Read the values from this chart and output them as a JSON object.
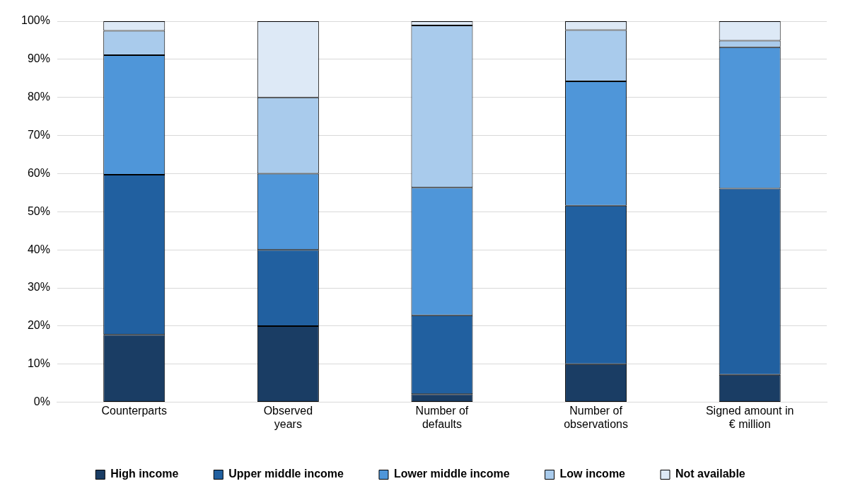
{
  "chart_data": {
    "type": "bar",
    "stacked": true,
    "categories": [
      "Counterparts",
      "Observed\nyears",
      "Number of\ndefaults",
      "Number of\nobservations",
      "Signed amount in\n€ million"
    ],
    "series": [
      {
        "name": "High income",
        "color": "#1a3d64",
        "values": [
          17.7,
          20,
          2.1,
          10.0,
          7.2
        ]
      },
      {
        "name": "Upper middle income",
        "color": "#2160a0",
        "values": [
          42.0,
          20,
          20.7,
          41.6,
          48.9
        ]
      },
      {
        "name": "Lower middle income",
        "color": "#4f96d9",
        "values": [
          31.4,
          20,
          33.5,
          32.6,
          37.1
        ]
      },
      {
        "name": "Low income",
        "color": "#a9cbec",
        "values": [
          6.4,
          20,
          42.6,
          13.5,
          1.7
        ]
      },
      {
        "name": "Not available",
        "color": "#dde9f6",
        "values": [
          2.5,
          20,
          1.1,
          2.3,
          5.1
        ]
      }
    ],
    "ylim": [
      0,
      100
    ],
    "yticks": [
      {
        "value": 0,
        "label": "0%"
      },
      {
        "value": 10,
        "label": "10%"
      },
      {
        "value": 20,
        "label": "20%"
      },
      {
        "value": 30,
        "label": "30%"
      },
      {
        "value": 40,
        "label": "40%"
      },
      {
        "value": 50,
        "label": "50%"
      },
      {
        "value": 60,
        "label": "60%"
      },
      {
        "value": 70,
        "label": "70%"
      },
      {
        "value": 80,
        "label": "80%"
      },
      {
        "value": 90,
        "label": "90%"
      },
      {
        "value": 100,
        "label": "100%"
      }
    ],
    "grid": "y",
    "legend": "bottom"
  }
}
